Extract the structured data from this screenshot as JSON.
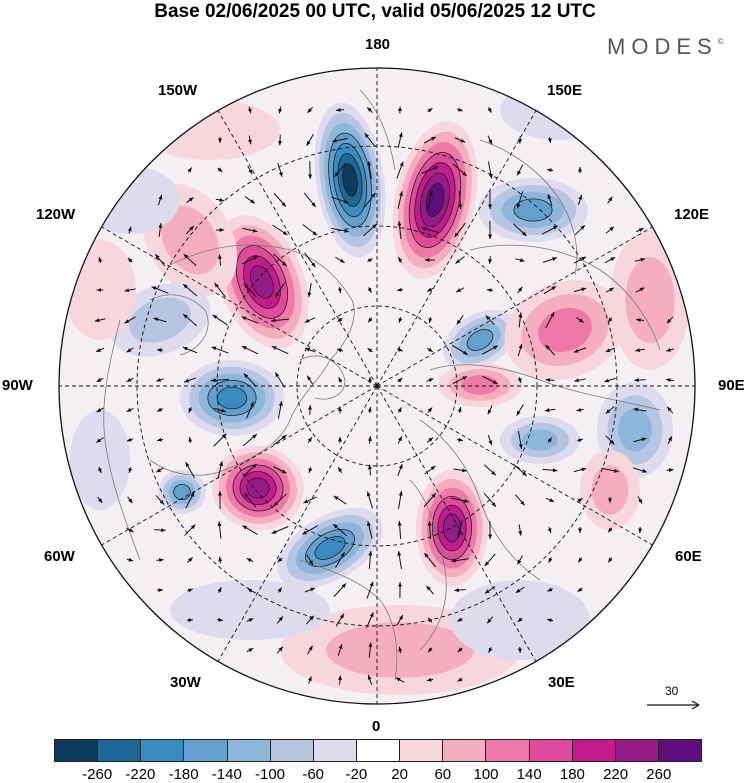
{
  "header": {
    "title": "Base 02/06/2025 00 UTC, valid 05/06/2025 12 UTC",
    "brand": "MODES"
  },
  "map": {
    "projection": "north polar stereographic",
    "longitude_labels": [
      "180",
      "150E",
      "120E",
      "90E",
      "60E",
      "30E",
      "0",
      "30W",
      "60W",
      "90W",
      "120W",
      "150W"
    ],
    "vector_scale_label": "30"
  },
  "colorbar": {
    "ticks": [
      "-260",
      "-220",
      "-180",
      "-140",
      "-100",
      "-60",
      "-20",
      "20",
      "60",
      "100",
      "140",
      "180",
      "220",
      "260"
    ],
    "colors": [
      "#0d3b5c",
      "#1d6896",
      "#3a8cc0",
      "#629fcd",
      "#8eb6da",
      "#b6c6e2",
      "#dcdcee",
      "#ffffff",
      "#f8d6dd",
      "#f4aebf",
      "#ee79a8",
      "#e04a9a",
      "#c31b8e",
      "#951b86",
      "#5f0f7c"
    ]
  }
}
